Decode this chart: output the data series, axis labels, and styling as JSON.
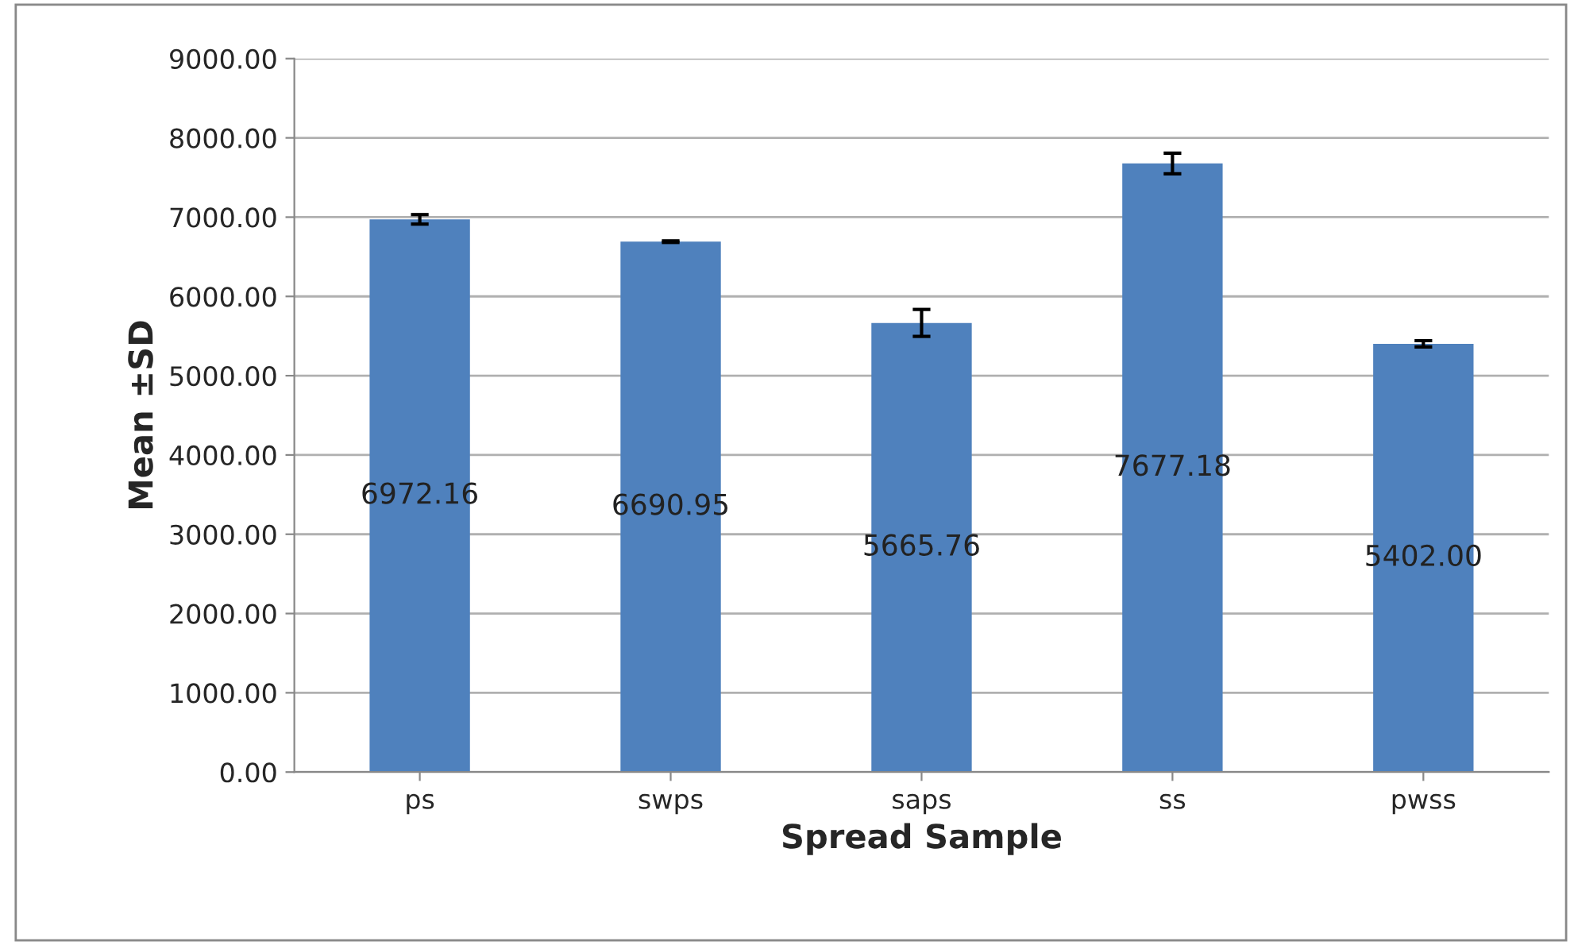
{
  "chart_data": {
    "type": "bar",
    "xlabel": "Spread Sample",
    "ylabel": "Mean ±SD",
    "categories": [
      "ps",
      "swps",
      "saps",
      "ss",
      "pwss"
    ],
    "values": [
      6972.16,
      6690.95,
      5665.76,
      7677.18,
      5402.0
    ],
    "value_labels": [
      "6972.16",
      "6690.95",
      "5665.76",
      "7677.18",
      "5402.00"
    ],
    "errors": [
      60,
      10,
      170,
      130,
      40
    ],
    "color": "#4f81bd",
    "ylim": [
      0,
      9000
    ],
    "yticks": [
      {
        "value": 0,
        "label": "0.00"
      },
      {
        "value": 1000,
        "label": "1000.00"
      },
      {
        "value": 2000,
        "label": "2000.00"
      },
      {
        "value": 3000,
        "label": "3000.00"
      },
      {
        "value": 4000,
        "label": "4000.00"
      },
      {
        "value": 5000,
        "label": "5000.00"
      },
      {
        "value": 6000,
        "label": "6000.00"
      },
      {
        "value": 7000,
        "label": "7000.00"
      },
      {
        "value": 8000,
        "label": "8000.00"
      },
      {
        "value": 9000,
        "label": "9000.00"
      }
    ],
    "grid": "y"
  }
}
